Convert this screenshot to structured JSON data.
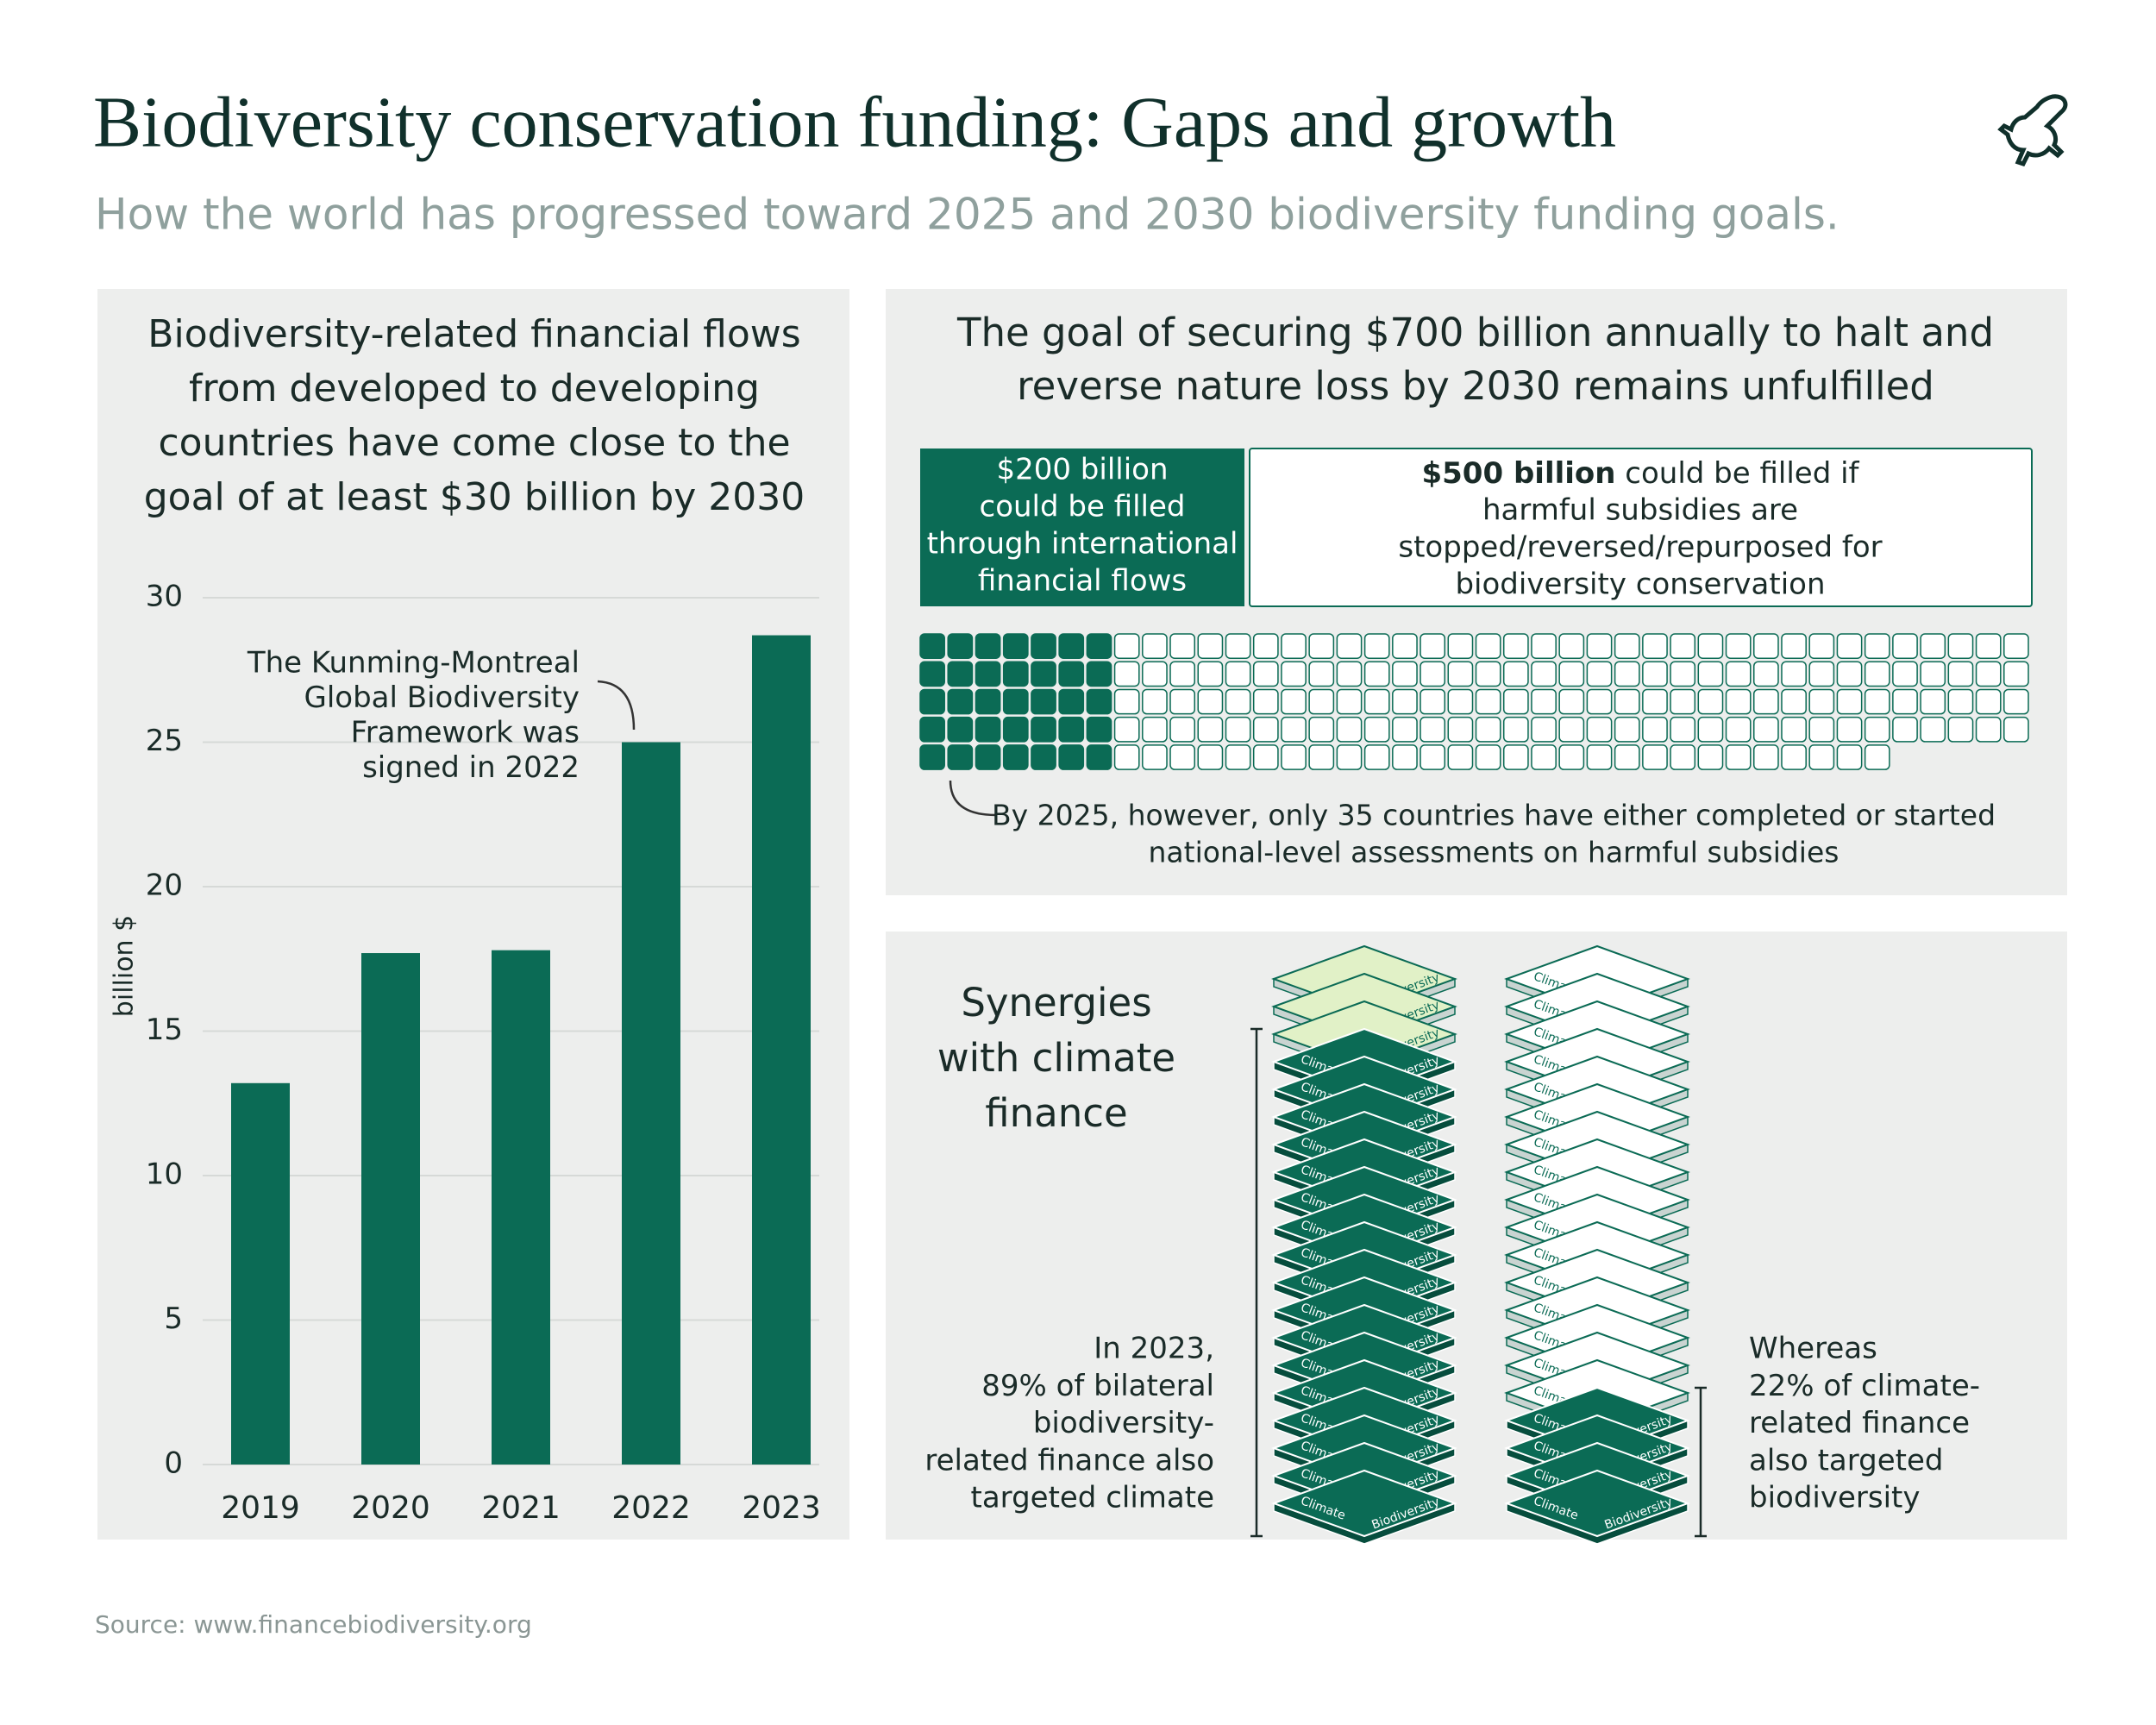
{
  "header": {
    "title": "Biodiversity conservation funding: Gaps and growth",
    "subtitle": "How the world has progressed toward 2025 and 2030 biodiversity funding goals."
  },
  "chart_data": {
    "type": "bar",
    "title_lines": [
      "Biodiversity-related financial flows",
      "from developed to developing",
      "countries have come close to the",
      "goal of at least $30 billion by 2030"
    ],
    "y_label": "billion $",
    "categories": [
      "2019",
      "2020",
      "2021",
      "2022",
      "2023"
    ],
    "values": [
      13.2,
      17.7,
      17.8,
      25,
      28.7
    ],
    "color": "#0b6b55",
    "ylim": [
      0,
      30
    ],
    "yticks": [
      0,
      5,
      10,
      15,
      20,
      25,
      30
    ],
    "grid": true,
    "annotation_lines": [
      "The Kunming-Montreal",
      "Global Biodiversity",
      "Framework was",
      "signed in 2022"
    ]
  },
  "goal_panel": {
    "title_lines": [
      "The goal of securing $700 billion annually to halt and",
      "reverse nature loss by 2030 remains unfulfilled"
    ],
    "box_left_lines": [
      "$200 billion",
      "could be filled",
      "through international",
      "financial flows"
    ],
    "box_right": {
      "bold": "$500 billion",
      "first_rest": " could be filled if",
      "lines": [
        "harmful subsidies are",
        "stopped/reversed/repurposed for",
        "biodiversity conservation"
      ]
    },
    "waffle": {
      "total": 195,
      "filled": 35,
      "color": "#0b6b55"
    },
    "note_lines": [
      "By 2025, however, only 35 countries have either completed or started",
      "national-level assessments on harmful subsidies"
    ]
  },
  "synergy_panel": {
    "title_lines": [
      "Synergies",
      "with climate",
      "finance"
    ],
    "layer_labels": {
      "climate": "Climate",
      "biodiversity": "Biodiversity"
    },
    "dark_color": "#0b6b55",
    "stacks": [
      {
        "percent": 89,
        "light_color": "#e1f1c7",
        "light_label": "biodiversity",
        "text_lines": [
          "In 2023,",
          "89% of bilateral",
          "biodiversity-",
          "related finance also",
          "targeted climate"
        ]
      },
      {
        "percent": 22,
        "light_color": "#ffffff",
        "light_label": "climate",
        "text_lines": [
          "Whereas",
          "22% of climate-",
          "related finance",
          "also targeted",
          "biodiversity"
        ]
      }
    ]
  },
  "source": "Source: www.financebiodiversity.org"
}
